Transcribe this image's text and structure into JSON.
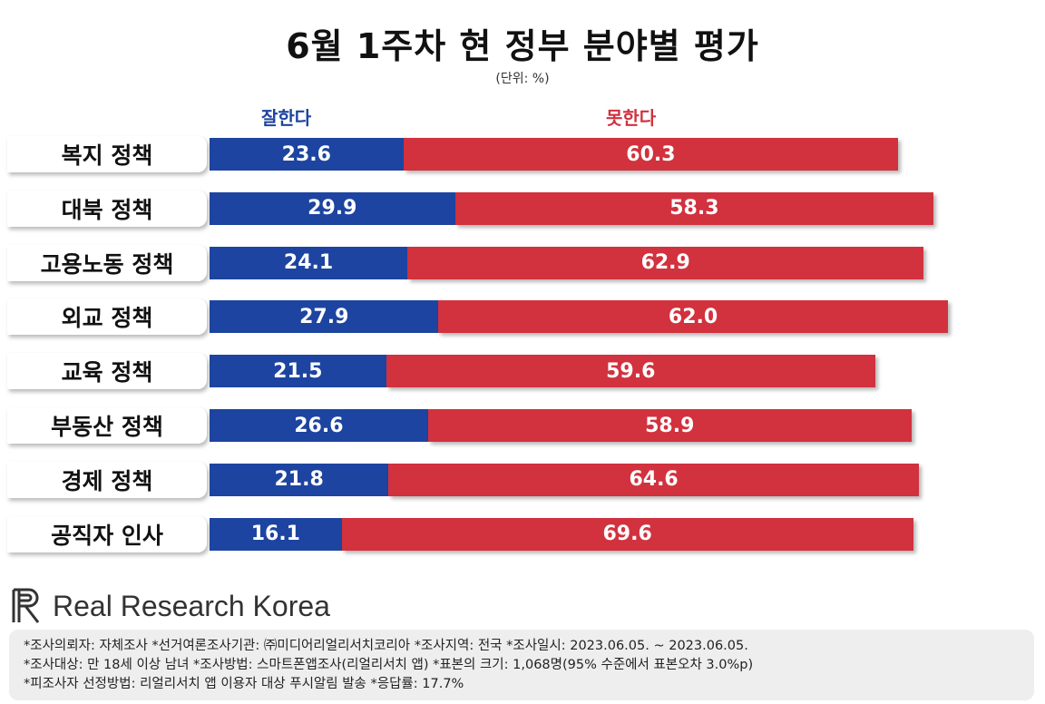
{
  "title": "6월 1주차 현 정부 분야별 평가",
  "unit": "(단위: %)",
  "legend": {
    "good": "잘한다",
    "bad": "못한다"
  },
  "colors": {
    "good": "#1d44a0",
    "bad": "#d2313e"
  },
  "chart_data": {
    "type": "bar",
    "orientation": "horizontal",
    "stacked": true,
    "title": "6월 1주차 현 정부 분야별 평가",
    "categories": [
      "복지 정책",
      "대북 정책",
      "고용노동 정책",
      "외교 정책",
      "교육 정책",
      "부동산 정책",
      "경제 정책",
      "공직자 인사"
    ],
    "series": [
      {
        "name": "잘한다",
        "values": [
          23.6,
          29.9,
          24.1,
          27.9,
          21.5,
          26.6,
          21.8,
          16.1
        ]
      },
      {
        "name": "못한다",
        "values": [
          60.3,
          58.3,
          62.9,
          62.0,
          59.6,
          58.9,
          64.6,
          69.6
        ]
      }
    ],
    "value_labels": {
      "good": [
        "23.6",
        "29.9",
        "24.1",
        "27.9",
        "21.5",
        "26.6",
        "21.8",
        "16.1"
      ],
      "bad": [
        "60.3",
        "58.3",
        "62.9",
        "62.0",
        "59.6",
        "58.9",
        "64.6",
        "69.6"
      ]
    },
    "xlim": [
      0,
      100
    ],
    "grid": false,
    "legend_position": "top"
  },
  "logo": {
    "text": "Real Research Korea",
    "icon": "rr-logo-icon"
  },
  "footer": {
    "lines": [
      "*조사의뢰자: 자체조사  *선거여론조사기관: ㈜미디어리얼리서치코리아  *조사지역: 전국  *조사일시: 2023.06.05. ~ 2023.06.05.",
      "*조사대상: 만 18세 이상 남녀  *조사방법: 스마트폰앱조사(리얼리서치 앱)  *표본의 크기: 1,068명(95% 수준에서 표본오차 3.0%p)",
      "*피조사자 선정방법: 리얼리서치 앱 이용자 대상 푸시알림 발송  *응답률: 17.7%"
    ]
  }
}
